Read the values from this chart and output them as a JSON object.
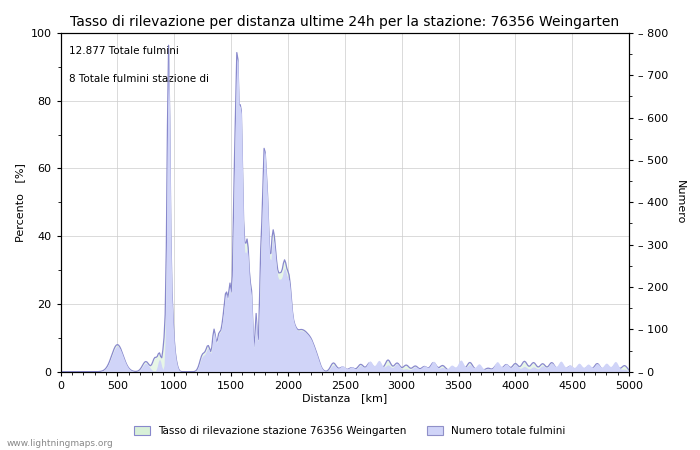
{
  "title": "Tasso di rilevazione per distanza ultime 24h per la stazione: 76356 Weingarten",
  "xlabel": "Distanza   [km]",
  "ylabel_left": "Percento   [%]",
  "ylabel_right": "Numero",
  "annotation_line1": "12.877 Totale fulmini",
  "annotation_line2": "8 Totale fulmini stazione di",
  "legend_label1": "Tasso di rilevazione stazione 76356 Weingarten",
  "legend_label2": "Numero totale fulmini",
  "watermark": "www.lightningmaps.org",
  "xlim": [
    0,
    5000
  ],
  "ylim_left": [
    0,
    100
  ],
  "ylim_right": [
    0,
    800
  ],
  "xticks": [
    0,
    500,
    1000,
    1500,
    2000,
    2500,
    3000,
    3500,
    4000,
    4500,
    5000
  ],
  "yticks_left": [
    0,
    20,
    40,
    60,
    80,
    100
  ],
  "yticks_right": [
    0,
    100,
    200,
    300,
    400,
    500,
    600,
    700,
    800
  ],
  "bg_color": "#ffffff",
  "fill_color_detection": "#c8e8ff",
  "fill_color_total": "#dce8ff",
  "line_color": "#8888cc",
  "grid_color": "#cccccc",
  "title_fontsize": 10,
  "axis_fontsize": 8,
  "tick_fontsize": 8,
  "figsize": [
    7.0,
    4.5
  ],
  "dpi": 100
}
